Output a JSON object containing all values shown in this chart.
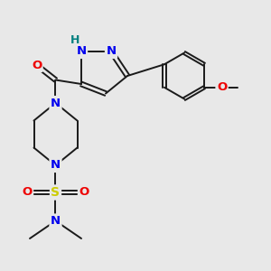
{
  "background_color": "#e8e8e8",
  "figsize": [
    3.0,
    3.0
  ],
  "dpi": 100,
  "bond_color": "#1a1a1a",
  "bond_lw": 1.4,
  "colors": {
    "N": "#0000ee",
    "O": "#ee0000",
    "S": "#cccc00",
    "H": "#008080",
    "C": "#1a1a1a"
  }
}
